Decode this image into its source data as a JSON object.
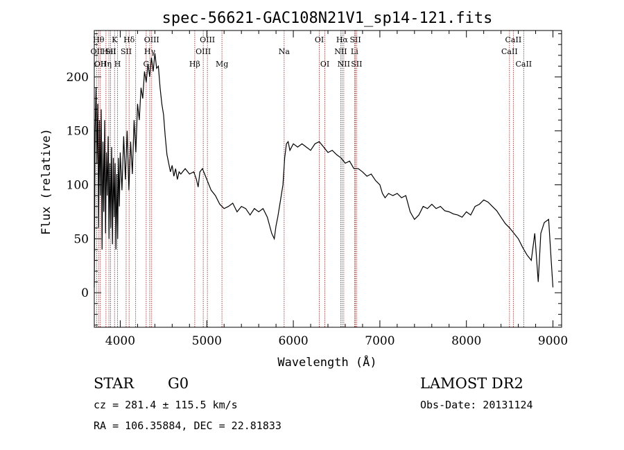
{
  "chart_data": {
    "type": "line",
    "title": "spec-56621-GAC108N21V1_sp14-121.fits",
    "xlabel": "Wavelength (Å)",
    "ylabel": "Flux (relative)",
    "xlim": [
      3700,
      9100
    ],
    "ylim": [
      -32,
      243
    ],
    "xticks": [
      4000,
      5000,
      6000,
      7000,
      8000,
      9000
    ],
    "yticks": [
      0,
      50,
      100,
      150,
      200
    ],
    "grid": false,
    "series": [
      {
        "color": "#000000",
        "points": [
          [
            3700,
            5
          ],
          [
            3710,
            150
          ],
          [
            3720,
            190
          ],
          [
            3730,
            120
          ],
          [
            3740,
            175
          ],
          [
            3750,
            60
          ],
          [
            3760,
            160
          ],
          [
            3770,
            90
          ],
          [
            3780,
            170
          ],
          [
            3790,
            40
          ],
          [
            3800,
            140
          ],
          [
            3810,
            75
          ],
          [
            3820,
            160
          ],
          [
            3830,
            55
          ],
          [
            3840,
            130
          ],
          [
            3850,
            90
          ],
          [
            3860,
            145
          ],
          [
            3870,
            50
          ],
          [
            3880,
            120
          ],
          [
            3890,
            60
          ],
          [
            3900,
            135
          ],
          [
            3910,
            45
          ],
          [
            3920,
            125
          ],
          [
            3930,
            70
          ],
          [
            3940,
            120
          ],
          [
            3950,
            40
          ],
          [
            3960,
            110
          ],
          [
            3970,
            50
          ],
          [
            3980,
            125
          ],
          [
            3990,
            80
          ],
          [
            4000,
            130
          ],
          [
            4020,
            95
          ],
          [
            4040,
            145
          ],
          [
            4060,
            105
          ],
          [
            4080,
            150
          ],
          [
            4100,
            95
          ],
          [
            4120,
            140
          ],
          [
            4140,
            110
          ],
          [
            4160,
            160
          ],
          [
            4180,
            130
          ],
          [
            4200,
            175
          ],
          [
            4220,
            160
          ],
          [
            4240,
            190
          ],
          [
            4260,
            180
          ],
          [
            4280,
            205
          ],
          [
            4300,
            195
          ],
          [
            4320,
            212
          ],
          [
            4340,
            200
          ],
          [
            4360,
            218
          ],
          [
            4380,
            205
          ],
          [
            4400,
            222
          ],
          [
            4420,
            208
          ],
          [
            4440,
            210
          ],
          [
            4460,
            190
          ],
          [
            4480,
            175
          ],
          [
            4500,
            165
          ],
          [
            4520,
            145
          ],
          [
            4540,
            128
          ],
          [
            4560,
            120
          ],
          [
            4580,
            112
          ],
          [
            4600,
            118
          ],
          [
            4620,
            108
          ],
          [
            4640,
            115
          ],
          [
            4660,
            105
          ],
          [
            4680,
            112
          ],
          [
            4700,
            110
          ],
          [
            4750,
            115
          ],
          [
            4800,
            110
          ],
          [
            4850,
            112
          ],
          [
            4880,
            105
          ],
          [
            4900,
            98
          ],
          [
            4920,
            112
          ],
          [
            4950,
            115
          ],
          [
            5000,
            105
          ],
          [
            5050,
            95
          ],
          [
            5100,
            90
          ],
          [
            5150,
            82
          ],
          [
            5200,
            78
          ],
          [
            5250,
            80
          ],
          [
            5300,
            83
          ],
          [
            5350,
            75
          ],
          [
            5400,
            80
          ],
          [
            5450,
            78
          ],
          [
            5500,
            72
          ],
          [
            5550,
            78
          ],
          [
            5600,
            75
          ],
          [
            5650,
            78
          ],
          [
            5700,
            70
          ],
          [
            5750,
            55
          ],
          [
            5780,
            50
          ],
          [
            5800,
            62
          ],
          [
            5820,
            70
          ],
          [
            5850,
            85
          ],
          [
            5880,
            100
          ],
          [
            5900,
            125
          ],
          [
            5920,
            138
          ],
          [
            5940,
            140
          ],
          [
            5960,
            132
          ],
          [
            6000,
            138
          ],
          [
            6050,
            135
          ],
          [
            6100,
            138
          ],
          [
            6150,
            135
          ],
          [
            6200,
            132
          ],
          [
            6250,
            138
          ],
          [
            6300,
            140
          ],
          [
            6350,
            135
          ],
          [
            6400,
            130
          ],
          [
            6450,
            132
          ],
          [
            6500,
            128
          ],
          [
            6550,
            125
          ],
          [
            6600,
            120
          ],
          [
            6650,
            122
          ],
          [
            6700,
            115
          ],
          [
            6750,
            115
          ],
          [
            6800,
            112
          ],
          [
            6850,
            108
          ],
          [
            6900,
            110
          ],
          [
            6950,
            104
          ],
          [
            7000,
            100
          ],
          [
            7030,
            92
          ],
          [
            7060,
            88
          ],
          [
            7100,
            92
          ],
          [
            7150,
            90
          ],
          [
            7200,
            92
          ],
          [
            7250,
            88
          ],
          [
            7300,
            90
          ],
          [
            7350,
            75
          ],
          [
            7400,
            68
          ],
          [
            7450,
            72
          ],
          [
            7500,
            80
          ],
          [
            7550,
            78
          ],
          [
            7600,
            82
          ],
          [
            7650,
            78
          ],
          [
            7700,
            80
          ],
          [
            7750,
            76
          ],
          [
            7800,
            75
          ],
          [
            7850,
            73
          ],
          [
            7900,
            72
          ],
          [
            7950,
            70
          ],
          [
            8000,
            75
          ],
          [
            8050,
            72
          ],
          [
            8100,
            80
          ],
          [
            8150,
            82
          ],
          [
            8200,
            86
          ],
          [
            8250,
            84
          ],
          [
            8300,
            80
          ],
          [
            8350,
            76
          ],
          [
            8400,
            70
          ],
          [
            8450,
            64
          ],
          [
            8500,
            60
          ],
          [
            8550,
            55
          ],
          [
            8600,
            50
          ],
          [
            8650,
            42
          ],
          [
            8700,
            35
          ],
          [
            8750,
            30
          ],
          [
            8790,
            55
          ],
          [
            8830,
            10
          ],
          [
            8860,
            55
          ],
          [
            8900,
            65
          ],
          [
            8950,
            68
          ],
          [
            8980,
            30
          ],
          [
            9000,
            5
          ]
        ]
      }
    ],
    "spectral_lines": [
      {
        "x": 3727,
        "label": "OII",
        "row": 2
      },
      {
        "x": 3750,
        "label": "Hθ",
        "row": 1
      },
      {
        "x": 3770,
        "label": "OII",
        "row": 3
      },
      {
        "x": 3835,
        "label": "Hη",
        "row": 3
      },
      {
        "x": 3869,
        "label": "HeI",
        "row": 2
      },
      {
        "x": 3889,
        "label": "SII",
        "row": 2
      },
      {
        "x": 3934,
        "label": "K",
        "row": 1
      },
      {
        "x": 3969,
        "label": "H",
        "row": 3
      },
      {
        "x": 4068,
        "label": "SII",
        "row": 2
      },
      {
        "x": 4102,
        "label": "Hδ",
        "row": 1
      },
      {
        "x": 4178,
        "label": "",
        "row": 0
      },
      {
        "x": 4300,
        "label": "G",
        "row": 3
      },
      {
        "x": 4341,
        "label": "Hγ",
        "row": 2
      },
      {
        "x": 4363,
        "label": "OIII",
        "row": 1
      },
      {
        "x": 4861,
        "label": "Hβ",
        "row": 3
      },
      {
        "x": 4959,
        "label": "OIII",
        "row": 2
      },
      {
        "x": 5007,
        "label": "OIII",
        "row": 1
      },
      {
        "x": 5175,
        "label": "Mg",
        "row": 3
      },
      {
        "x": 5894,
        "label": "Na",
        "row": 2
      },
      {
        "x": 6300,
        "label": "OI",
        "row": 1
      },
      {
        "x": 6364,
        "label": "OI",
        "row": 3
      },
      {
        "x": 6548,
        "label": "NII",
        "row": 2
      },
      {
        "x": 6563,
        "label": "Hα",
        "row": 1
      },
      {
        "x": 6583,
        "label": "NII",
        "row": 3
      },
      {
        "x": 6707,
        "label": "Li",
        "row": 2
      },
      {
        "x": 6717,
        "label": "SII",
        "row": 1
      },
      {
        "x": 6731,
        "label": "SII",
        "row": 3
      },
      {
        "x": 8498,
        "label": "CaII",
        "row": 2
      },
      {
        "x": 8542,
        "label": "CaII",
        "row": 1
      },
      {
        "x": 8662,
        "label": "CaII",
        "row": 3
      }
    ]
  },
  "info": {
    "object_class": "STAR",
    "subclass": "G0",
    "survey": "LAMOST DR2",
    "cz": "cz = 281.4 ± 115.5 km/s",
    "obs_date": "Obs-Date: 20131124",
    "coords": "RA = 106.35884, DEC =  22.81833"
  },
  "colors": {
    "line_marker": "#8b1a1a",
    "spectrum": "#000000"
  }
}
